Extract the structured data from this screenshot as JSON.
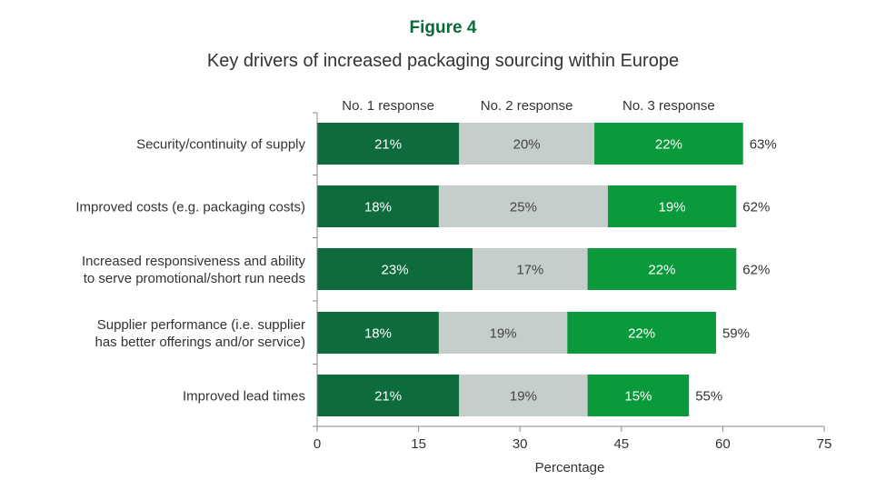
{
  "figure_label": "Figure 4",
  "chart_data": {
    "type": "bar",
    "orientation": "horizontal",
    "stacked": true,
    "title": "Key drivers of increased packaging sourcing within Europe",
    "xlabel": "Percentage",
    "ylabel": "",
    "xlim": [
      0,
      75
    ],
    "xticks": [
      0,
      15,
      30,
      45,
      60,
      75
    ],
    "grid": false,
    "legend_position": "top",
    "categories": [
      [
        "Security/continuity of supply"
      ],
      [
        "Improved costs (e.g. packaging costs)"
      ],
      [
        "Increased responsiveness and ability",
        "to serve promotional/short run needs"
      ],
      [
        "Supplier performance (i.e. supplier",
        "has better offerings and/or service)"
      ],
      [
        "Improved lead times"
      ]
    ],
    "series": [
      {
        "name": "No. 1 response",
        "color": "#0e6b3b",
        "text_color": "#ffffff",
        "values": [
          21,
          18,
          23,
          18,
          21
        ]
      },
      {
        "name": "No. 2 response",
        "color": "#c6cecb",
        "text_color": "#444444",
        "values": [
          20,
          25,
          17,
          19,
          19
        ]
      },
      {
        "name": "No. 3 response",
        "color": "#0a9a3c",
        "text_color": "#ffffff",
        "values": [
          22,
          19,
          22,
          22,
          15
        ]
      }
    ],
    "totals": [
      63,
      62,
      62,
      59,
      55
    ],
    "value_suffix": "%"
  }
}
